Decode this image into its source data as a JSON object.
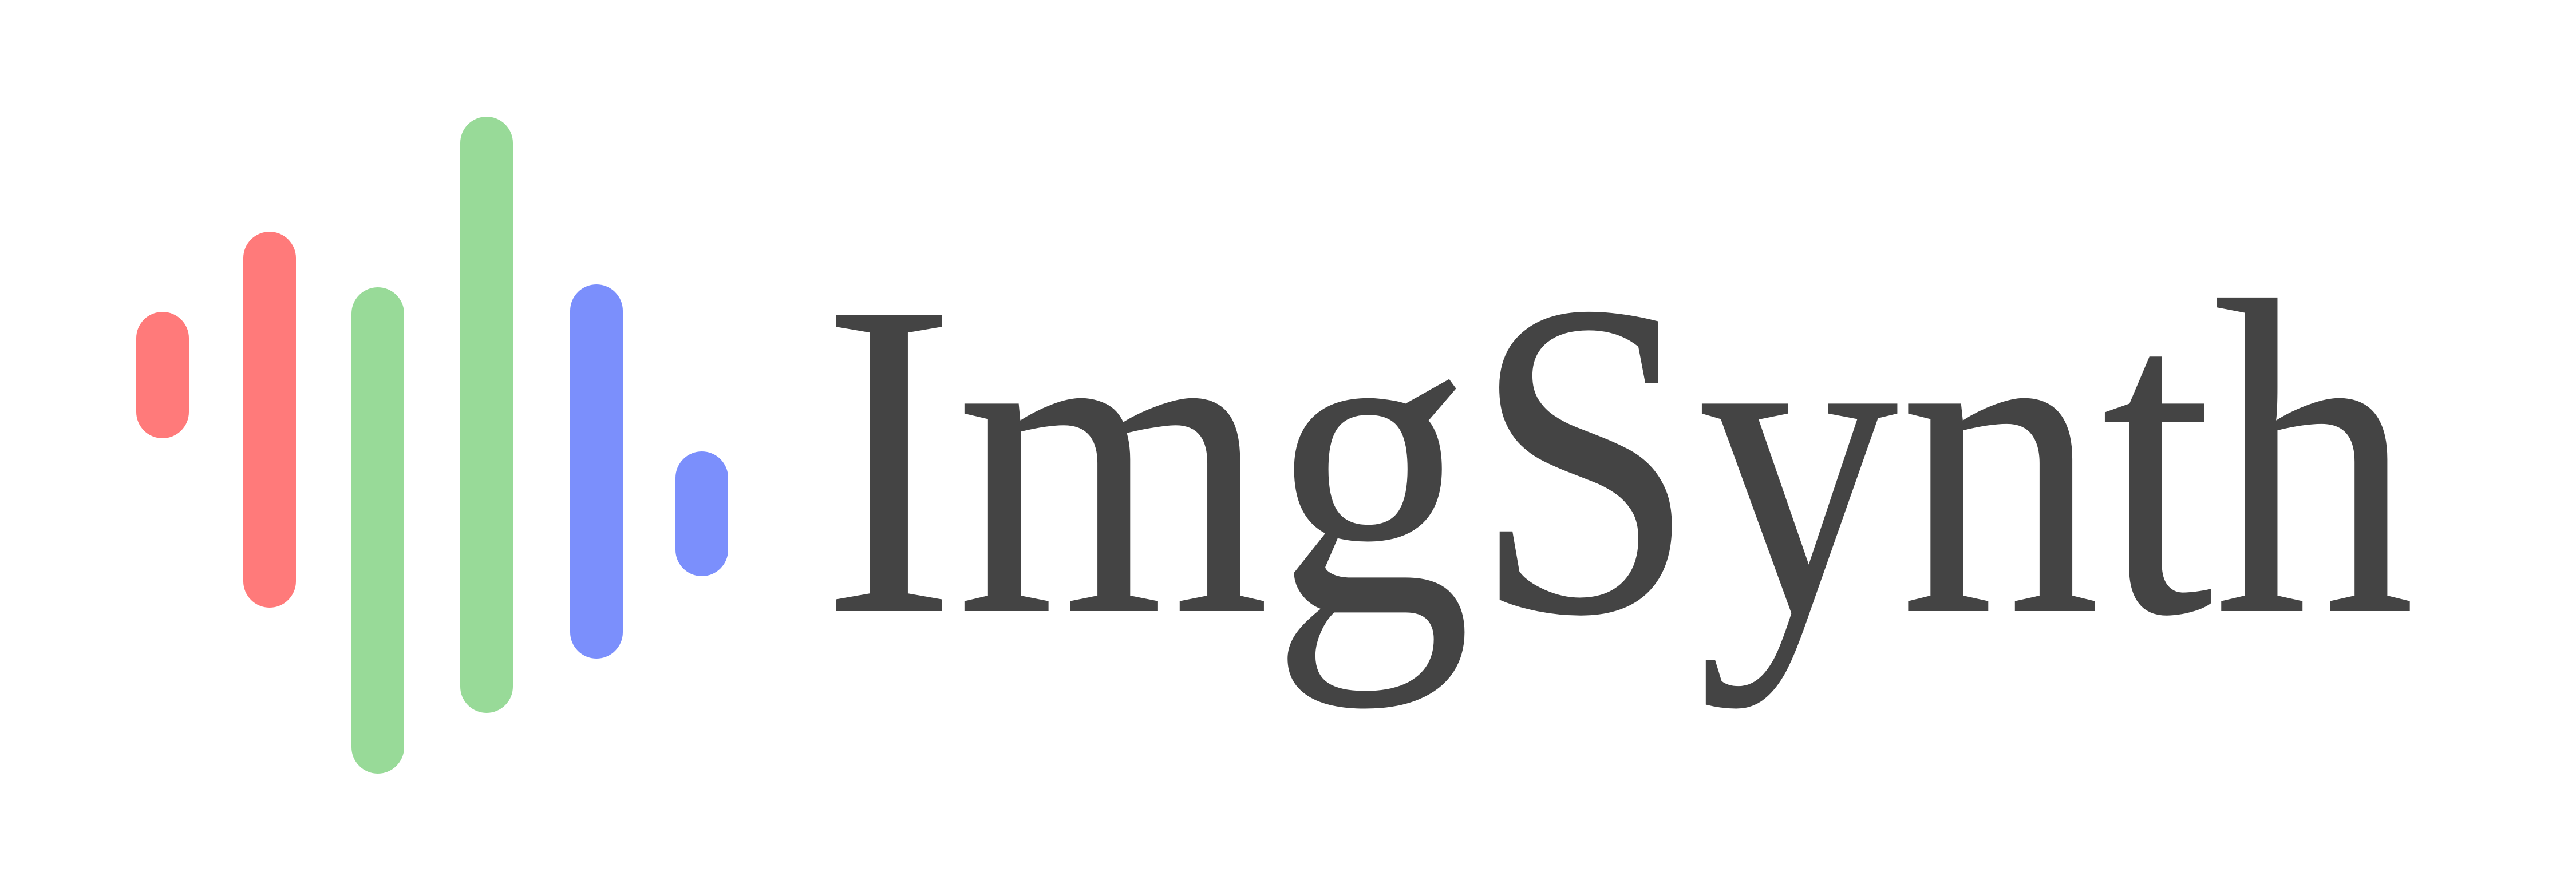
{
  "logo": {
    "text": "ImgSynth"
  }
}
